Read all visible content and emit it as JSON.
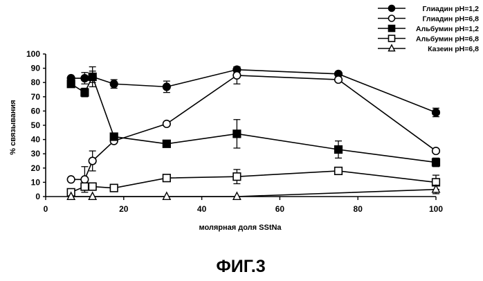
{
  "figure_caption": "ФИГ.3",
  "chart_data": {
    "type": "line",
    "title": "",
    "xlabel": "молярная доля SStNa",
    "ylabel": "% связывания",
    "xlim": [
      0,
      100
    ],
    "ylim": [
      0,
      100
    ],
    "xticks": [
      0,
      20,
      40,
      60,
      80,
      100
    ],
    "yticks": [
      0,
      10,
      20,
      30,
      40,
      50,
      60,
      70,
      80,
      90,
      100
    ],
    "grid": false,
    "legend_position": "top-right",
    "series": [
      {
        "name": "Глиадин pH=1,2",
        "marker": "circle-filled",
        "color": "#000000",
        "x": [
          6.5,
          10,
          12,
          17.5,
          31,
          49,
          75,
          100
        ],
        "y": [
          83,
          83,
          84,
          79,
          77,
          89,
          86,
          59
        ],
        "err": [
          1,
          4,
          4,
          3,
          4,
          2,
          1,
          3
        ]
      },
      {
        "name": "Глиадин pH=6,8",
        "marker": "circle-open",
        "color": "#000000",
        "x": [
          6.5,
          10,
          12,
          17.5,
          31,
          49,
          75,
          100
        ],
        "y": [
          12,
          12,
          25,
          39,
          51,
          85,
          82,
          32
        ],
        "err": [
          0,
          9,
          7,
          0,
          0,
          6,
          0,
          0
        ]
      },
      {
        "name": "Альбумин pH=1,2",
        "marker": "square-filled",
        "color": "#000000",
        "x": [
          6.5,
          10,
          12,
          17.5,
          31,
          49,
          75,
          100
        ],
        "y": [
          79,
          73,
          84,
          42,
          37,
          44,
          33,
          24
        ],
        "err": [
          0,
          3,
          7,
          0,
          0,
          10,
          6,
          3
        ]
      },
      {
        "name": "Альбумин pH=6,8",
        "marker": "square-open",
        "color": "#000000",
        "x": [
          6.5,
          10,
          12,
          17.5,
          31,
          49,
          75,
          100
        ],
        "y": [
          3,
          7,
          7,
          6,
          13,
          14,
          18,
          10
        ],
        "err": [
          0,
          0,
          0,
          0,
          0,
          5,
          0,
          5
        ]
      },
      {
        "name": "Казеин pH=6,8",
        "marker": "triangle-open",
        "color": "#000000",
        "x": [
          6.5,
          12,
          31,
          49,
          100
        ],
        "y": [
          0,
          0,
          0,
          0,
          5
        ],
        "err": [
          0,
          0,
          0,
          0,
          3
        ]
      }
    ]
  }
}
